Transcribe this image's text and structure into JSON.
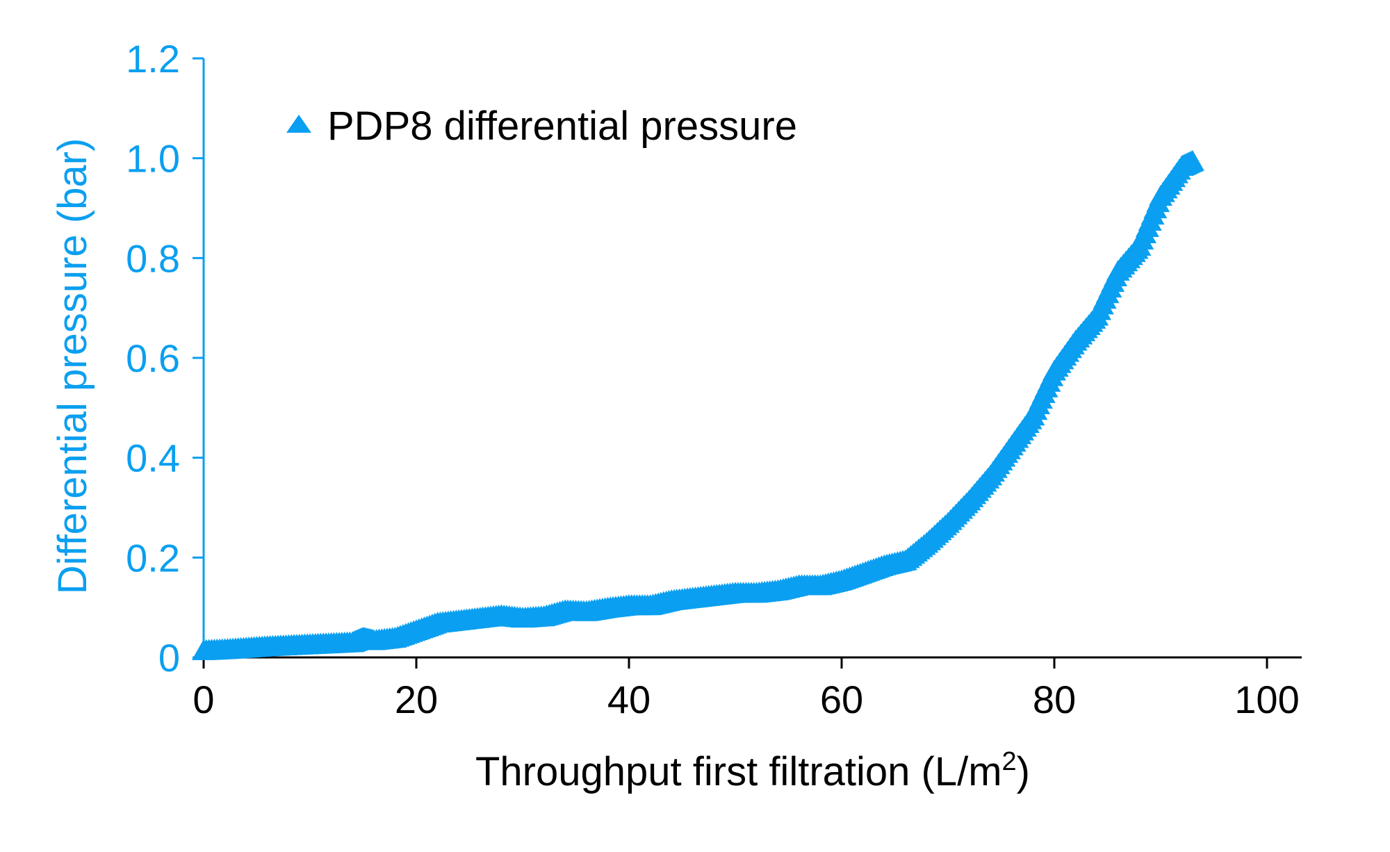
{
  "chart_data": {
    "type": "scatter",
    "title": "",
    "xlabel": "Throughput first filtration (L/m",
    "xlabel_superscript": "2",
    "xlabel_suffix": ")",
    "ylabel": "Differential pressure (bar)",
    "xlim": [
      0,
      100
    ],
    "ylim": [
      0,
      1.2
    ],
    "xticks": [
      0,
      20,
      40,
      60,
      80,
      100
    ],
    "xtick_labels": [
      "0",
      "20",
      "40",
      "60",
      "80",
      "100"
    ],
    "yticks": [
      0,
      0.2,
      0.4,
      0.6,
      0.8,
      1.0,
      1.2
    ],
    "ytick_labels": [
      "0",
      "0.2",
      "0.4",
      "0.6",
      "0.8",
      "1.0",
      "1.2"
    ],
    "grid": false,
    "legend_position": "top-left",
    "marker": "triangle",
    "colors": {
      "series": "#0A9FF0",
      "y_axis": "#0A9FF0",
      "x_axis": "#000000"
    },
    "series": [
      {
        "name": "PDP8 differential pressure",
        "points": [
          [
            0,
            0.01
          ],
          [
            2,
            0.012
          ],
          [
            4,
            0.015
          ],
          [
            6,
            0.018
          ],
          [
            8,
            0.02
          ],
          [
            10,
            0.022
          ],
          [
            12,
            0.024
          ],
          [
            14,
            0.026
          ],
          [
            15,
            0.035
          ],
          [
            16,
            0.03
          ],
          [
            18,
            0.035
          ],
          [
            20,
            0.05
          ],
          [
            22,
            0.065
          ],
          [
            24,
            0.07
          ],
          [
            26,
            0.075
          ],
          [
            28,
            0.08
          ],
          [
            30,
            0.075
          ],
          [
            32,
            0.078
          ],
          [
            34,
            0.09
          ],
          [
            36,
            0.088
          ],
          [
            38,
            0.095
          ],
          [
            40,
            0.1
          ],
          [
            42,
            0.1
          ],
          [
            44,
            0.11
          ],
          [
            46,
            0.115
          ],
          [
            48,
            0.12
          ],
          [
            50,
            0.125
          ],
          [
            52,
            0.125
          ],
          [
            54,
            0.13
          ],
          [
            56,
            0.14
          ],
          [
            58,
            0.14
          ],
          [
            60,
            0.15
          ],
          [
            62,
            0.165
          ],
          [
            64,
            0.18
          ],
          [
            66,
            0.19
          ],
          [
            68,
            0.225
          ],
          [
            70,
            0.265
          ],
          [
            72,
            0.31
          ],
          [
            74,
            0.36
          ],
          [
            76,
            0.42
          ],
          [
            78,
            0.48
          ],
          [
            80,
            0.57
          ],
          [
            82,
            0.63
          ],
          [
            84,
            0.68
          ],
          [
            86,
            0.77
          ],
          [
            88,
            0.82
          ],
          [
            90,
            0.92
          ],
          [
            92,
            0.98
          ],
          [
            93,
            0.99
          ]
        ]
      }
    ]
  }
}
